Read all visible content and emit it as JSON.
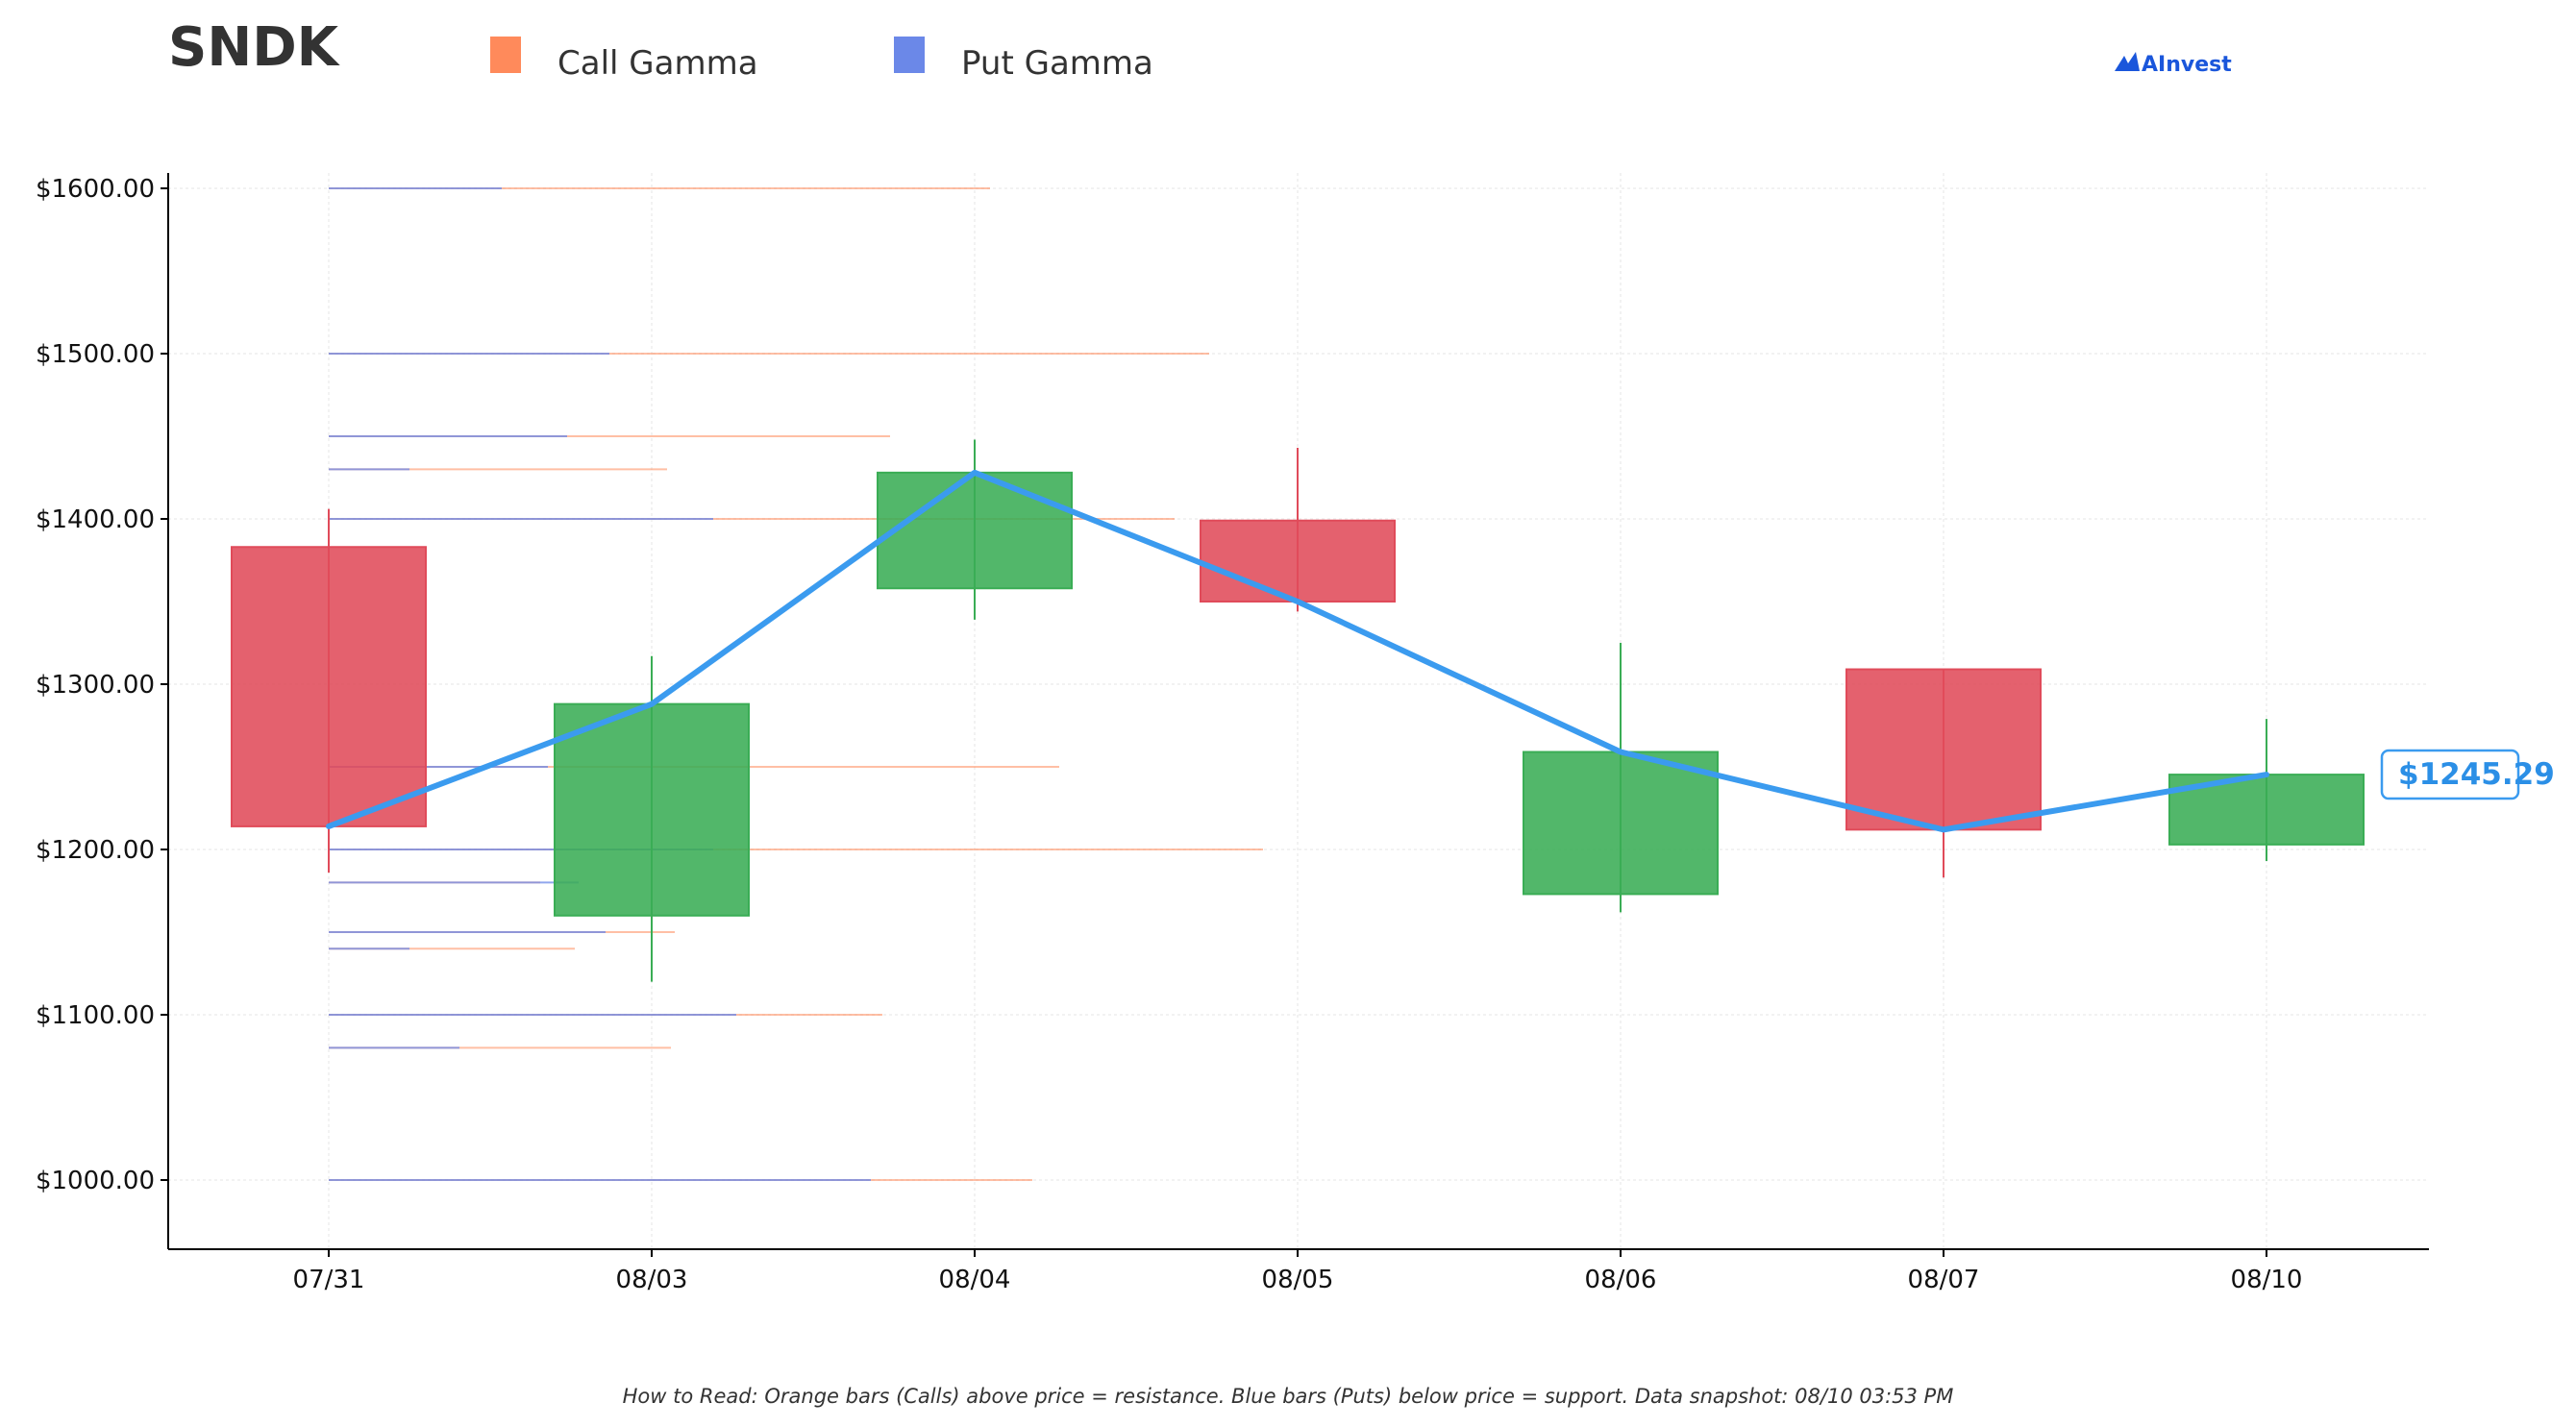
{
  "header": {
    "ticker": "SNDK",
    "brand": "AInvest"
  },
  "footer": {
    "note": "How to Read: Orange bars (Calls) above price = resistance. Blue bars (Puts) below price = support. Data snapshot: 08/10 03:53 PM"
  },
  "colors": {
    "call": "#ff8a5b",
    "put": "#6b88e8",
    "up": "#3aad55",
    "down": "#e04b5a",
    "line": "#3b9bef",
    "brand": "#1a56db"
  },
  "chart_data": {
    "type": "candlestick",
    "title": "SNDK",
    "legend": [
      {
        "name": "Call Gamma",
        "color": "#ff8a5b"
      },
      {
        "name": "Put Gamma",
        "color": "#6b88e8"
      }
    ],
    "legend_position": "top",
    "categories": [
      "07/31",
      "08/03",
      "08/04",
      "08/05",
      "08/06",
      "08/07",
      "08/10"
    ],
    "ylim": [
      960,
      1610
    ],
    "yticks": [
      1000,
      1100,
      1200,
      1300,
      1400,
      1500,
      1600
    ],
    "ytick_labels": [
      "$1000.00",
      "$1100.00",
      "$1200.00",
      "$1300.00",
      "$1400.00",
      "$1500.00",
      "$1600.00"
    ],
    "grid": true,
    "candles": [
      {
        "date": "07/31",
        "open": 1383,
        "high": 1406,
        "low": 1186,
        "close": 1214
      },
      {
        "date": "08/03",
        "open": 1160,
        "high": 1317,
        "low": 1120,
        "close": 1288
      },
      {
        "date": "08/04",
        "open": 1358,
        "high": 1448,
        "low": 1339,
        "close": 1428
      },
      {
        "date": "08/05",
        "open": 1399,
        "high": 1443,
        "low": 1344,
        "close": 1350
      },
      {
        "date": "08/06",
        "open": 1173,
        "high": 1325,
        "low": 1162,
        "close": 1259
      },
      {
        "date": "08/07",
        "open": 1309,
        "high": 1309,
        "low": 1183,
        "close": 1212
      },
      {
        "date": "08/10",
        "open": 1203,
        "high": 1279,
        "low": 1193,
        "close": 1245.29
      }
    ],
    "close_line": [
      1214,
      1288,
      1428,
      1350,
      1259,
      1212,
      1245.29
    ],
    "last_price_label": "$1245.29",
    "gamma_levels": [
      {
        "strike": 1600,
        "put": 0.45,
        "call": 1.72
      },
      {
        "strike": 1500,
        "put": 0.73,
        "call": 2.29
      },
      {
        "strike": 1450,
        "put": 0.62,
        "call": 1.46
      },
      {
        "strike": 1430,
        "put": 0.21,
        "call": 0.88
      },
      {
        "strike": 1400,
        "put": 1.0,
        "call": 2.2
      },
      {
        "strike": 1250,
        "put": 0.57,
        "call": 1.9
      },
      {
        "strike": 1200,
        "put": 1.0,
        "call": 2.43
      },
      {
        "strike": 1180,
        "put": 0.65,
        "call": 0.55
      },
      {
        "strike": 1150,
        "put": 0.72,
        "call": 0.9
      },
      {
        "strike": 1140,
        "put": 0.21,
        "call": 0.64
      },
      {
        "strike": 1100,
        "put": 1.06,
        "call": 1.44
      },
      {
        "strike": 1080,
        "put": 0.34,
        "call": 0.89
      },
      {
        "strike": 1000,
        "put": 1.41,
        "call": 1.83
      }
    ]
  }
}
